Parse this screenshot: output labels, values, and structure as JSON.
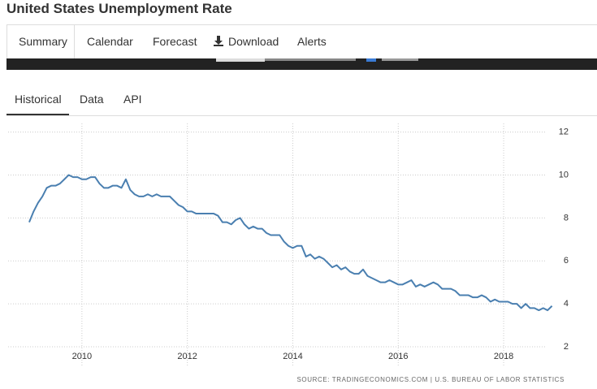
{
  "header": {
    "title": "United States Unemployment Rate"
  },
  "tabs": [
    "Summary",
    "Calendar",
    "Forecast",
    "Download",
    "Alerts"
  ],
  "subtabs": [
    "Historical",
    "Data",
    "API"
  ],
  "chart_data": {
    "type": "line",
    "x": [
      2009,
      2009.083,
      2009.167,
      2009.25,
      2009.333,
      2009.417,
      2009.5,
      2009.583,
      2009.667,
      2009.75,
      2009.833,
      2009.917,
      2010,
      2010.083,
      2010.167,
      2010.25,
      2010.333,
      2010.417,
      2010.5,
      2010.583,
      2010.667,
      2010.75,
      2010.833,
      2010.917,
      2011,
      2011.083,
      2011.167,
      2011.25,
      2011.333,
      2011.417,
      2011.5,
      2011.583,
      2011.667,
      2011.75,
      2011.833,
      2011.917,
      2012,
      2012.083,
      2012.167,
      2012.25,
      2012.333,
      2012.417,
      2012.5,
      2012.583,
      2012.667,
      2012.75,
      2012.833,
      2012.917,
      2013,
      2013.083,
      2013.167,
      2013.25,
      2013.333,
      2013.417,
      2013.5,
      2013.583,
      2013.667,
      2013.75,
      2013.833,
      2013.917,
      2014,
      2014.083,
      2014.167,
      2014.25,
      2014.333,
      2014.417,
      2014.5,
      2014.583,
      2014.667,
      2014.75,
      2014.833,
      2014.917,
      2015,
      2015.083,
      2015.167,
      2015.25,
      2015.333,
      2015.417,
      2015.5,
      2015.583,
      2015.667,
      2015.75,
      2015.833,
      2015.917,
      2016,
      2016.083,
      2016.167,
      2016.25,
      2016.333,
      2016.417,
      2016.5,
      2016.583,
      2016.667,
      2016.75,
      2016.833,
      2016.917,
      2017,
      2017.083,
      2017.167,
      2017.25,
      2017.333,
      2017.417,
      2017.5,
      2017.583,
      2017.667,
      2017.75,
      2017.833,
      2017.917,
      2018,
      2018.083,
      2018.167,
      2018.25,
      2018.333,
      2018.417,
      2018.5,
      2018.583,
      2018.667,
      2018.75,
      2018.833,
      2018.917
    ],
    "values": [
      7.8,
      8.3,
      8.7,
      9.0,
      9.4,
      9.5,
      9.5,
      9.6,
      9.8,
      10.0,
      9.9,
      9.9,
      9.8,
      9.8,
      9.9,
      9.9,
      9.6,
      9.4,
      9.4,
      9.5,
      9.5,
      9.4,
      9.8,
      9.3,
      9.1,
      9.0,
      9.0,
      9.1,
      9.0,
      9.1,
      9.0,
      9.0,
      9.0,
      8.8,
      8.6,
      8.5,
      8.3,
      8.3,
      8.2,
      8.2,
      8.2,
      8.2,
      8.2,
      8.1,
      7.8,
      7.8,
      7.7,
      7.9,
      8.0,
      7.7,
      7.5,
      7.6,
      7.5,
      7.5,
      7.3,
      7.2,
      7.2,
      7.2,
      6.9,
      6.7,
      6.6,
      6.7,
      6.7,
      6.2,
      6.3,
      6.1,
      6.2,
      6.1,
      5.9,
      5.7,
      5.8,
      5.6,
      5.7,
      5.5,
      5.4,
      5.4,
      5.6,
      5.3,
      5.2,
      5.1,
      5.0,
      5.0,
      5.1,
      5.0,
      4.9,
      4.9,
      5.0,
      5.1,
      4.8,
      4.9,
      4.8,
      4.9,
      5.0,
      4.9,
      4.7,
      4.7,
      4.7,
      4.6,
      4.4,
      4.4,
      4.4,
      4.3,
      4.3,
      4.4,
      4.3,
      4.1,
      4.2,
      4.1,
      4.1,
      4.1,
      4.0,
      4.0,
      3.8,
      4.0,
      3.8,
      3.8,
      3.7,
      3.8,
      3.7,
      3.9
    ],
    "color": "#4a7fb0",
    "xlim": [
      2008.6,
      2018.8
    ],
    "xticks": [
      2010,
      2012,
      2014,
      2016,
      2018
    ],
    "ylim": [
      2,
      12.4
    ],
    "yticks": [
      2,
      4,
      6,
      8,
      10,
      12
    ],
    "grid": true,
    "source": "SOURCE: TRADINGECONOMICS.COM | U.S. BUREAU OF LABOR STATISTICS"
  }
}
